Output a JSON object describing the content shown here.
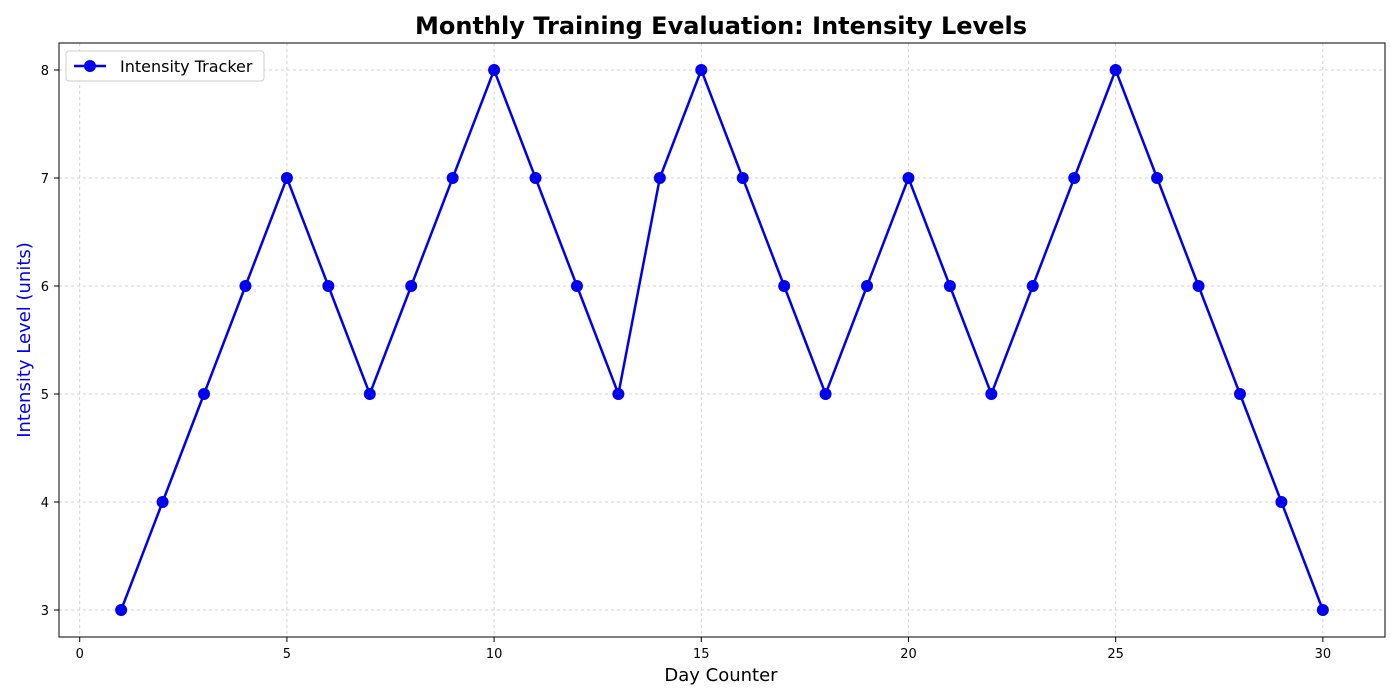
{
  "chart_data": {
    "type": "line",
    "title": "Monthly Training Evaluation: Intensity Levels",
    "xlabel": "Day Counter",
    "ylabel": "Intensity Level (units)",
    "xlim": [
      -0.5,
      31.5
    ],
    "ylim": [
      2.75,
      8.25
    ],
    "xticks": [
      0,
      5,
      10,
      15,
      20,
      25,
      30
    ],
    "yticks": [
      3,
      4,
      5,
      6,
      7,
      8
    ],
    "grid": true,
    "legend_position": "top-left",
    "series": [
      {
        "name": "Intensity Tracker",
        "color": "#0000ee",
        "marker": "circle",
        "x": [
          1,
          2,
          3,
          4,
          5,
          6,
          7,
          8,
          9,
          10,
          11,
          12,
          13,
          14,
          15,
          16,
          17,
          18,
          19,
          20,
          21,
          22,
          23,
          24,
          25,
          26,
          27,
          28,
          29,
          30
        ],
        "y": [
          3,
          4,
          5,
          6,
          7,
          6,
          5,
          6,
          7,
          8,
          7,
          6,
          5,
          7,
          8,
          7,
          6,
          5,
          6,
          7,
          6,
          5,
          6,
          7,
          8,
          7,
          6,
          5,
          4,
          3
        ]
      }
    ],
    "colors": {
      "series_line": "#0000ee",
      "ylabel_color": "#0000ee",
      "grid": "#c8c8c8"
    }
  }
}
